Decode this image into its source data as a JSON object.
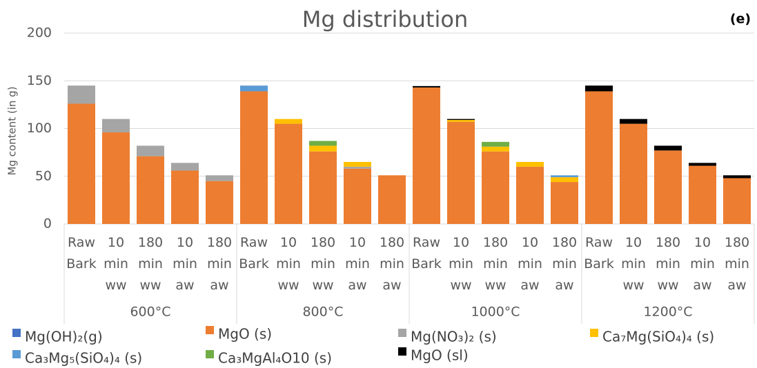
{
  "chart_data": {
    "type": "bar",
    "stacked": true,
    "title": "Mg distribution",
    "panel_label": "(e)",
    "y_label": "Mg content (in g)",
    "groups": [
      "600°C",
      "800°C",
      "1000°C",
      "1200°C"
    ],
    "categories": [
      "Raw Bark",
      "10 min ww",
      "180 min ww",
      "10 min aw",
      "180 min aw",
      "Raw Bark",
      "10 min ww",
      "180 min ww",
      "10 min aw",
      "180 min aw",
      "Raw Bark",
      "10 min ww",
      "180 min ww",
      "10 min aw",
      "180 min aw",
      "Raw Bark",
      "10 min ww",
      "180 min ww",
      "10 min aw",
      "180 min aw"
    ],
    "ylim": [
      0,
      200
    ],
    "yticks": [
      0,
      50,
      100,
      150,
      200
    ],
    "grid": true,
    "series": [
      {
        "name": "Mg(OH)₂(g)",
        "color": "#4472c4",
        "values": [
          0,
          0,
          0,
          0,
          0,
          0,
          0,
          0,
          0,
          0,
          0,
          0,
          0,
          0,
          0,
          0,
          0,
          0,
          0,
          0
        ]
      },
      {
        "name": "MgO (s)",
        "color": "#ed7d31",
        "values": [
          126,
          96,
          71,
          56,
          45,
          139,
          105,
          76,
          58,
          51,
          143,
          107,
          76,
          60,
          44,
          139,
          105,
          77,
          61,
          48
        ]
      },
      {
        "name": "Mg(NO₃)₂ (s)",
        "color": "#a5a5a5",
        "values": [
          19,
          14,
          11,
          8,
          6,
          0,
          0,
          0,
          2,
          0,
          0,
          0,
          0,
          0,
          0,
          0,
          0,
          0,
          0,
          0
        ]
      },
      {
        "name": "Ca₇Mg(SiO₄)₄ (s)",
        "color": "#ffc000",
        "values": [
          0,
          0,
          0,
          0,
          0,
          0,
          5,
          6,
          5,
          0,
          0,
          2,
          5,
          5,
          5,
          0,
          0,
          0,
          0,
          0
        ]
      },
      {
        "name": "Ca₃Mg₅(SiO₄)₄ (s)",
        "color": "#5b9bd5",
        "values": [
          0,
          0,
          0,
          0,
          0,
          6,
          0,
          0,
          0,
          0,
          0,
          0,
          0,
          0,
          2,
          0,
          0,
          0,
          0,
          0
        ]
      },
      {
        "name": "Ca₃MgAl₄O10 (s)",
        "color": "#70ad47",
        "values": [
          0,
          0,
          0,
          0,
          0,
          0,
          0,
          5,
          0,
          0,
          0,
          0,
          5,
          0,
          0,
          0,
          0,
          0,
          0,
          0
        ]
      },
      {
        "name": "MgO (sl)",
        "color": "#000000",
        "values": [
          0,
          0,
          0,
          0,
          0,
          0,
          0,
          0,
          0,
          0,
          1.5,
          1,
          0,
          0,
          0,
          6,
          5,
          5,
          3,
          3
        ]
      }
    ]
  }
}
